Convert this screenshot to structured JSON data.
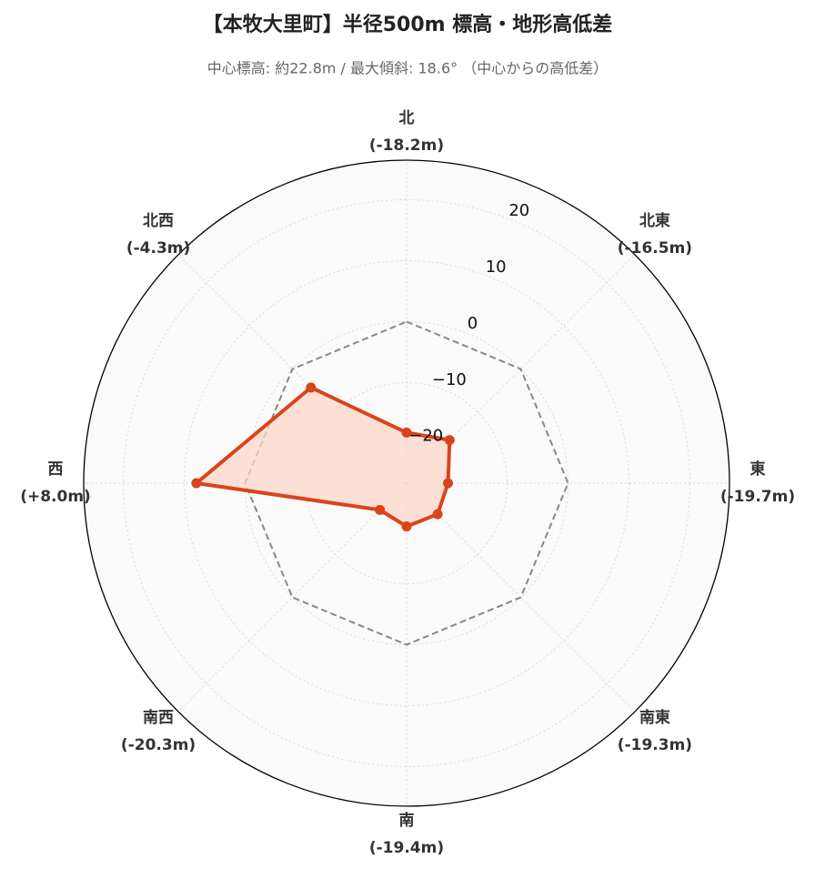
{
  "chart_data": {
    "type": "radar",
    "title": "【本牧大里町】半径500m 標高・地形高低差",
    "subtitle": "中心標高: 約22.8m / 最大傾斜: 18.6° （中心からの高低差）",
    "categories": [
      "北",
      "北東",
      "東",
      "南東",
      "南",
      "南西",
      "西",
      "北西"
    ],
    "series": [
      {
        "color": "#d9441a",
        "fill": "#fcd5c8",
        "values": [
          -18.2,
          -16.5,
          -19.7,
          -19.3,
          -19.4,
          -20.3,
          8.0,
          -4.3
        ],
        "value_labels": [
          "(-18.2m)",
          "(-16.5m)",
          "(-19.7m)",
          "(-19.3m)",
          "(-19.4m)",
          "(-20.3m)",
          "(+8.0m)",
          "(-4.3m)"
        ]
      }
    ],
    "reference_values": [
      0,
      0,
      0,
      0,
      0,
      0,
      0,
      0
    ],
    "reference_color": "#888888",
    "rlim": [
      -26.5,
      26.5
    ],
    "rticks": [
      {
        "value": -20,
        "label": "−20"
      },
      {
        "value": -10,
        "label": "−10"
      },
      0,
      10,
      20
    ],
    "grid": true
  }
}
